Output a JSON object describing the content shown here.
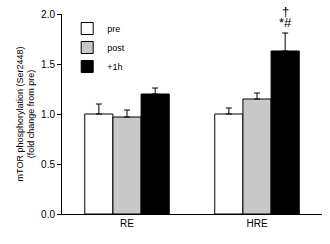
{
  "chart_data": {
    "type": "bar",
    "y_label": "mTOR phosphorylation (Ser2448)\n(fold change from pre)",
    "categories": [
      "RE",
      "HRE"
    ],
    "series": [
      {
        "name": "pre",
        "color": "#ffffff",
        "values": [
          1.0,
          1.0
        ],
        "errors": [
          0.1,
          0.06
        ]
      },
      {
        "name": "post",
        "color": "#c8c8c8",
        "values": [
          0.97,
          1.15
        ],
        "errors": [
          0.07,
          0.06
        ]
      },
      {
        "name": "+1h",
        "color": "#000000",
        "values": [
          1.2,
          1.63
        ],
        "errors": [
          0.06,
          0.18
        ]
      }
    ],
    "ylim": [
      0,
      2.0
    ],
    "yticks": [
      {
        "value": 0,
        "label": "0.0"
      },
      0.5,
      {
        "value": 1.0,
        "label": "1.0"
      },
      1.5,
      {
        "value": 2.0,
        "label": "2.0"
      }
    ],
    "grid": false,
    "legend": "top-left",
    "annotations": [
      {
        "text": "*#",
        "category": "HRE",
        "series": "+1h"
      },
      {
        "text": "†",
        "category": "HRE",
        "series": "+1h"
      }
    ]
  }
}
